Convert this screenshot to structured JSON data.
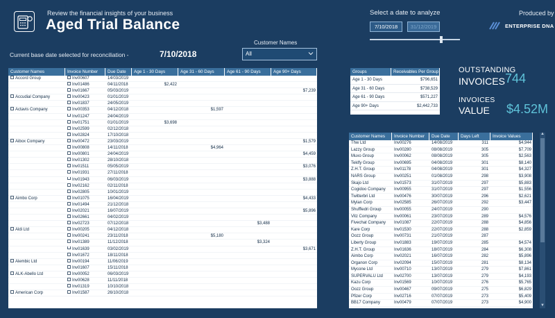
{
  "header": {
    "subtitle": "Review the financial insights of your business",
    "title": "Aged Trial Balance",
    "date_prompt": "Select a date to analyze",
    "date_start": "7/10/2018",
    "date_end": "31/12/2019",
    "produced_by": "Produced by",
    "brand": "ENTERPRISE DNA"
  },
  "filters": {
    "customer_label": "Customer Names",
    "customer_value": "All",
    "base_date_label": "Current base date selected for reconciliation -",
    "base_date": "7/10/2018"
  },
  "main_table": {
    "columns": [
      "Customer Names",
      "Invoice Number",
      "Due Date",
      "Age 1 - 30 Days",
      "Age 31 - 60 Days",
      "Age 61 - 90 Days",
      "Age 90+ Days"
    ],
    "rows": [
      {
        "cust": "Accord Group",
        "inv": "Inv00607",
        "due": "14/03/2019",
        "b": 0,
        "v": "",
        "p": 0
      },
      {
        "cust": "",
        "inv": "Inv01486",
        "due": "04/11/2018",
        "b": 0,
        "v": "$2,422",
        "p": 0.0
      },
      {
        "cust": "",
        "inv": "Inv01667",
        "due": "05/03/2019",
        "b": 3,
        "v": "$7,239",
        "p": 0.75
      },
      {
        "cust": "Accudial Company",
        "inv": "Inv00423",
        "due": "01/01/2019",
        "b": 2,
        "v": "$10,622",
        "p": 1.0
      },
      {
        "cust": "",
        "inv": "Inv01837",
        "due": "24/05/2019",
        "b": 3,
        "v": "$9,202",
        "p": 0.95
      },
      {
        "cust": "Actavis Company",
        "inv": "Inv00353",
        "due": "04/12/2018",
        "b": 1,
        "v": "$1,597",
        "p": 0.0
      },
      {
        "cust": "",
        "inv": "Inv01247",
        "due": "24/04/2019",
        "b": 3,
        "v": "$8,790",
        "p": 0.9
      },
      {
        "cust": "",
        "inv": "Inv01751",
        "due": "01/01/2019",
        "b": 0,
        "v": "$3,698",
        "p": 0.5
      },
      {
        "cust": "",
        "inv": "Inv02599",
        "due": "02/12/2018",
        "b": 1,
        "v": "$7,406",
        "p": 1.0
      },
      {
        "cust": "",
        "inv": "Inv02824",
        "due": "17/10/2018",
        "b": 0,
        "v": "$6,809",
        "p": 1.0
      },
      {
        "cust": "Aibox Company",
        "inv": "Inv00472",
        "due": "23/03/2019",
        "b": 3,
        "v": "$1,579",
        "p": 0.0
      },
      {
        "cust": "",
        "inv": "Inv00808",
        "due": "14/11/2018",
        "b": 1,
        "v": "$4,964",
        "p": 0.5
      },
      {
        "cust": "",
        "inv": "Inv00801",
        "due": "24/04/2019",
        "b": 3,
        "v": "$4,459",
        "p": 0.45
      },
      {
        "cust": "",
        "inv": "Inv01302",
        "due": "28/10/2018",
        "b": 0,
        "v": "$5,036",
        "p": 1.0
      },
      {
        "cust": "",
        "inv": "Inv01511",
        "due": "05/05/2019",
        "b": 3,
        "v": "$3,076",
        "p": 0.35
      },
      {
        "cust": "",
        "inv": "Inv01931",
        "due": "27/11/2018",
        "b": 1,
        "v": "$7,672",
        "p": 1.0
      },
      {
        "cust": "",
        "inv": "Inv01943",
        "due": "06/03/2019",
        "b": 3,
        "v": "$3,888",
        "p": 0.4
      },
      {
        "cust": "",
        "inv": "Inv02162",
        "due": "02/11/2018",
        "b": 1,
        "v": "$7,586",
        "p": 1.0
      },
      {
        "cust": "",
        "inv": "Inv02805",
        "due": "10/01/2019",
        "b": 3,
        "v": "$9,059",
        "p": 1.0
      },
      {
        "cust": "Aimbo Corp",
        "inv": "Inv01075",
        "due": "16/04/2019",
        "b": 3,
        "v": "$4,433",
        "p": 0.45
      },
      {
        "cust": "",
        "inv": "Inv01494",
        "due": "21/12/2018",
        "b": 2,
        "v": "$9,577",
        "p": 1.0
      },
      {
        "cust": "",
        "inv": "Inv02021",
        "due": "16/07/2019",
        "b": 3,
        "v": "$5,896",
        "p": 0.6
      },
      {
        "cust": "",
        "inv": "Inv02661",
        "due": "04/02/2019",
        "b": 3,
        "v": "$10,390",
        "p": 1.0
      },
      {
        "cust": "",
        "inv": "Inv02723",
        "due": "07/12/2018",
        "b": 2,
        "v": "$3,488",
        "p": 0.45
      },
      {
        "cust": "Aldi Ltd",
        "inv": "Inv00205",
        "due": "04/12/2018",
        "b": 2,
        "v": "$9,085",
        "p": 1.0
      },
      {
        "cust": "",
        "inv": "Inv00241",
        "due": "23/11/2018",
        "b": 1,
        "v": "$5,180",
        "p": 0.55
      },
      {
        "cust": "",
        "inv": "Inv01389",
        "due": "11/12/2018",
        "b": 2,
        "v": "$3,324",
        "p": 0.4
      },
      {
        "cust": "",
        "inv": "Inv01639",
        "due": "03/02/2019",
        "b": 3,
        "v": "$3,671",
        "p": 0.35
      },
      {
        "cust": "",
        "inv": "Inv01672",
        "due": "18/11/2018",
        "b": 1,
        "v": "$7,936",
        "p": 1.0
      },
      {
        "cust": "Alembic Ltd",
        "inv": "Inv00194",
        "due": "11/06/2019",
        "b": 3,
        "v": "$8,197",
        "p": 0.9
      },
      {
        "cust": "",
        "inv": "Inv01607",
        "due": "15/11/2018",
        "b": 1,
        "v": "$7,474",
        "p": 1.0
      },
      {
        "cust": "ALK-Abello Ltd",
        "inv": "Inv00052",
        "due": "06/03/2019",
        "b": 3,
        "v": "$9,410",
        "p": 1.0
      },
      {
        "cust": "",
        "inv": "Inv00628",
        "due": "11/11/2018",
        "b": 1,
        "v": "$5,978",
        "p": 1.0
      },
      {
        "cust": "",
        "inv": "Inv01319",
        "due": "10/10/2018",
        "b": 0,
        "v": "$5,049",
        "p": 1.0
      },
      {
        "cust": "American Corp",
        "inv": "Inv01587",
        "due": "26/10/2018",
        "b": 0,
        "v": "$5,911",
        "p": 1.0
      }
    ]
  },
  "groups_table": {
    "columns": [
      "Groups",
      "Receivables Per Group"
    ],
    "rows": [
      {
        "g": "Age 1 - 30 Days",
        "v": "$796,651"
      },
      {
        "g": "Age 31 - 60 Days",
        "v": "$738,529"
      },
      {
        "g": "Age 61 - 90 Days",
        "v": "$571,227"
      },
      {
        "g": "Age 90+ Days",
        "v": "$2,442,733"
      }
    ]
  },
  "kpis": {
    "outstanding_label": "OUTSTANDING",
    "invoices_label": "INVOICES",
    "invoices_count": "744",
    "invoices_label2": "INVOICES",
    "value_label": "VALUE",
    "value_amount": "$4.52M"
  },
  "due_table": {
    "columns": [
      "Customer Names",
      "Invoice Number",
      "Due Date",
      "Days Left",
      "Invoice Values"
    ],
    "rows": [
      {
        "c": "Thw Ltd",
        "i": "Inv00276",
        "d": "14/08/2019",
        "l": "311",
        "v": "$4,944",
        "p": 0.5
      },
      {
        "c": "Lazzy Group",
        "i": "Inv00280",
        "d": "08/08/2019",
        "l": "305",
        "v": "$7,709",
        "p": 0.75
      },
      {
        "c": "Muxo Group",
        "i": "Inv00062",
        "d": "08/08/2019",
        "l": "305",
        "v": "$2,563",
        "p": 0.25
      },
      {
        "c": "Teklfy Group",
        "i": "Inv00695",
        "d": "04/08/2019",
        "l": "301",
        "v": "$8,140",
        "p": 0.85
      },
      {
        "c": "Z.H.T. Group",
        "i": "Inv01178",
        "d": "04/08/2019",
        "l": "301",
        "v": "$4,327",
        "p": 0.45
      },
      {
        "c": "NARS Group",
        "i": "Inv00251",
        "d": "01/08/2019",
        "l": "298",
        "v": "$3,908",
        "p": 0.4
      },
      {
        "c": "Skajo Ltd",
        "i": "Inv01573",
        "d": "31/07/2019",
        "l": "297",
        "v": "$5,883",
        "p": 0.55
      },
      {
        "c": "Cogidoo Company",
        "i": "Inv00955",
        "d": "31/07/2019",
        "l": "297",
        "v": "$1,556",
        "p": 0.15
      },
      {
        "c": "Twitterbri Ltd",
        "i": "Inv00476",
        "d": "30/07/2019",
        "l": "296",
        "v": "$2,621",
        "p": 0.25
      },
      {
        "c": "Mylan Corp",
        "i": "Inv02585",
        "d": "26/07/2019",
        "l": "292",
        "v": "$3,447",
        "p": 0.35
      },
      {
        "c": "Shuffledri Group",
        "i": "Inv00055",
        "d": "24/07/2019",
        "l": "290",
        "v": "$9,649",
        "p": 0.95
      },
      {
        "c": "Vitz Company",
        "i": "Inv00061",
        "d": "23/07/2019",
        "l": "289",
        "v": "$4,576",
        "p": 0.45
      },
      {
        "c": "Fivechat Company",
        "i": "Inv01087",
        "d": "22/07/2019",
        "l": "288",
        "v": "$4,856",
        "p": 0.5
      },
      {
        "c": "Kare Corp",
        "i": "Inv01530",
        "d": "22/07/2019",
        "l": "288",
        "v": "$2,859",
        "p": 0.3
      },
      {
        "c": "Oozz Group",
        "i": "Inv00731",
        "d": "21/07/2019",
        "l": "287",
        "v": "$10,508",
        "p": 1.0
      },
      {
        "c": "Liberty Group",
        "i": "Inv01883",
        "d": "19/07/2019",
        "l": "285",
        "v": "$4,574",
        "p": 0.45
      },
      {
        "c": "Z.H.T. Group",
        "i": "Inv01636",
        "d": "18/07/2019",
        "l": "284",
        "v": "$6,308",
        "p": 0.6
      },
      {
        "c": "Aimbo Corp",
        "i": "Inv02021",
        "d": "16/07/2019",
        "l": "282",
        "v": "$5,896",
        "p": 0.55
      },
      {
        "c": "Organon Corp",
        "i": "Inv02094",
        "d": "15/07/2019",
        "l": "281",
        "v": "$8,134",
        "p": 0.8
      },
      {
        "c": "Mycone Ltd",
        "i": "Inv00710",
        "d": "13/07/2019",
        "l": "279",
        "v": "$7,861",
        "p": 0.75
      },
      {
        "c": "SUPERVALU Ltd",
        "i": "Inv02700",
        "d": "13/07/2019",
        "l": "279",
        "v": "$4,193",
        "p": 0.4
      },
      {
        "c": "Kazu Corp",
        "i": "Inv01569",
        "d": "10/07/2019",
        "l": "276",
        "v": "$5,765",
        "p": 0.55
      },
      {
        "c": "Oozz Group",
        "i": "Inv00467",
        "d": "09/07/2019",
        "l": "275",
        "v": "$6,829",
        "p": 0.65
      },
      {
        "c": "Pfizer Corp",
        "i": "Inv02716",
        "d": "07/07/2019",
        "l": "273",
        "v": "$5,409",
        "p": 0.5
      },
      {
        "c": "BB17 Company",
        "i": "Inv00479",
        "d": "07/07/2019",
        "l": "273",
        "v": "$4,900",
        "p": 0.45
      }
    ]
  },
  "colors": {
    "background": "#1b3d61",
    "header_row": "#3a6f9c",
    "bar_light": "#4fb9c6",
    "bar_dark": "#2e6b78",
    "kpi_value": "#5fc3d9"
  }
}
